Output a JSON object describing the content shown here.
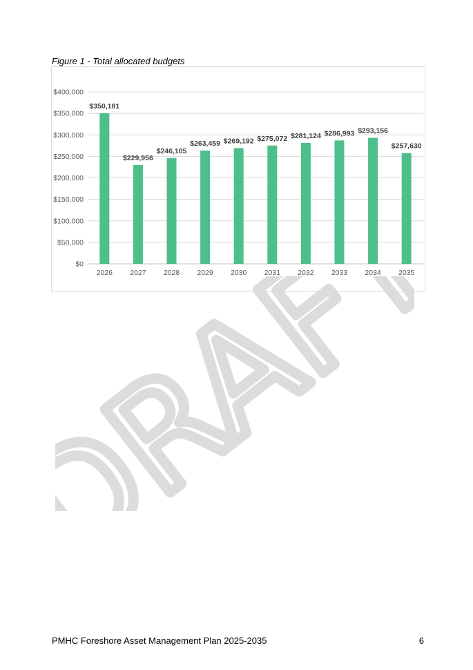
{
  "figure": {
    "caption": "Figure 1 - Total allocated budgets"
  },
  "watermark": {
    "text": "DRAFT"
  },
  "chart_data": {
    "type": "bar",
    "categories": [
      "2026",
      "2027",
      "2028",
      "2029",
      "2030",
      "2031",
      "2032",
      "2033",
      "2034",
      "2035"
    ],
    "values": [
      350181,
      229956,
      246105,
      263459,
      269192,
      275072,
      281124,
      286993,
      293156,
      257630
    ],
    "data_labels": [
      "$350,181",
      "$229,956",
      "$246,105",
      "$263,459",
      "$269,192",
      "$275,072",
      "$281,124",
      "$286,993",
      "$293,156",
      "$257,630"
    ],
    "y_ticks": [
      0,
      50000,
      100000,
      150000,
      200000,
      250000,
      300000,
      350000,
      400000
    ],
    "y_tick_labels": [
      "$0",
      "$50,000",
      "$100,000",
      "$150,000",
      "$200,000",
      "$250,000",
      "$300,000",
      "$350,000",
      "$400,000"
    ],
    "ylim": [
      0,
      400000
    ],
    "title": "",
    "xlabel": "",
    "ylabel": "",
    "grid": true,
    "legend": "none",
    "bar_color": "#4dbf8a"
  },
  "footer": {
    "document_title": "PMHC Foreshore Asset Management Plan 2025-2035",
    "page_number": "6"
  }
}
